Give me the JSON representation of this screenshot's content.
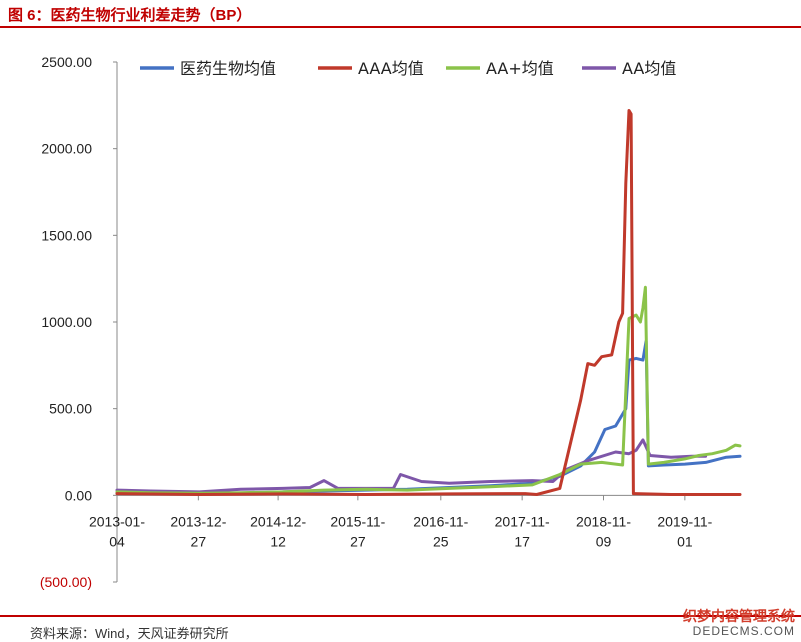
{
  "figure_title": "图 6：医药生物行业利差走势（BP）",
  "source_note": "资料来源：Wind，天风证券研究所",
  "watermark": {
    "line1": "织梦内容管理系统",
    "line2": "DEDECMS.COM"
  },
  "colors": {
    "med": "#4472c4",
    "aaa": "#c0392b",
    "aaplus": "#8bc34a",
    "aa": "#7e57a9"
  },
  "chart_data": {
    "type": "line",
    "title": "",
    "xlabel": "",
    "ylabel": "",
    "ylim": [
      -500,
      2500
    ],
    "y_ticks": [
      -500,
      0,
      500,
      1000,
      1500,
      2000,
      2500
    ],
    "y_tick_labels": [
      "(500.00)",
      "0.00",
      "500.00",
      "1000.00",
      "1500.00",
      "2000.00",
      "2500.00"
    ],
    "x_range": [
      "2013-01-04",
      "2020-06-30"
    ],
    "x_ticks": [
      {
        "date": "2013-01-04",
        "line1": "2013-01-",
        "line2": "04"
      },
      {
        "date": "2013-12-27",
        "line1": "2013-12-",
        "line2": "27"
      },
      {
        "date": "2014-12-12",
        "line1": "2014-12-",
        "line2": "12"
      },
      {
        "date": "2015-11-27",
        "line1": "2015-11-",
        "line2": "27"
      },
      {
        "date": "2016-11-25",
        "line1": "2016-11-",
        "line2": "25"
      },
      {
        "date": "2017-11-17",
        "line1": "2017-11-",
        "line2": "17"
      },
      {
        "date": "2018-11-09",
        "line1": "2018-11-",
        "line2": "09"
      },
      {
        "date": "2019-11-01",
        "line1": "2019-11-",
        "line2": "01"
      }
    ],
    "legend_position": "top",
    "grid": false,
    "series": [
      {
        "key": "med",
        "name": "医药生物均值",
        "points": [
          [
            "2013-01-04",
            15
          ],
          [
            "2013-06-01",
            10
          ],
          [
            "2014-01-01",
            8
          ],
          [
            "2014-07-01",
            12
          ],
          [
            "2015-01-01",
            20
          ],
          [
            "2015-07-01",
            25
          ],
          [
            "2016-01-01",
            30
          ],
          [
            "2016-07-01",
            35
          ],
          [
            "2017-01-01",
            45
          ],
          [
            "2017-07-01",
            55
          ],
          [
            "2018-01-01",
            70
          ],
          [
            "2018-05-01",
            110
          ],
          [
            "2018-08-01",
            170
          ],
          [
            "2018-10-01",
            250
          ],
          [
            "2018-11-15",
            380
          ],
          [
            "2019-01-01",
            400
          ],
          [
            "2019-02-15",
            500
          ],
          [
            "2019-03-01",
            780
          ],
          [
            "2019-04-01",
            790
          ],
          [
            "2019-05-01",
            780
          ],
          [
            "2019-05-15",
            890
          ],
          [
            "2019-05-25",
            170
          ],
          [
            "2019-08-01",
            175
          ],
          [
            "2019-11-01",
            180
          ],
          [
            "2020-02-01",
            190
          ],
          [
            "2020-05-01",
            220
          ],
          [
            "2020-06-30",
            225
          ]
        ]
      },
      {
        "key": "aaa",
        "name": "AAA均值",
        "points": [
          [
            "2013-01-04",
            10
          ],
          [
            "2014-01-01",
            5
          ],
          [
            "2015-01-01",
            8
          ],
          [
            "2016-01-01",
            5
          ],
          [
            "2017-01-01",
            8
          ],
          [
            "2017-12-01",
            10
          ],
          [
            "2018-01-20",
            5
          ],
          [
            "2018-05-01",
            40
          ],
          [
            "2018-08-01",
            550
          ],
          [
            "2018-09-01",
            760
          ],
          [
            "2018-10-01",
            750
          ],
          [
            "2018-11-01",
            800
          ],
          [
            "2018-12-15",
            810
          ],
          [
            "2019-01-15",
            1000
          ],
          [
            "2019-02-01",
            1050
          ],
          [
            "2019-02-15",
            1800
          ],
          [
            "2019-03-01",
            2220
          ],
          [
            "2019-03-10",
            2200
          ],
          [
            "2019-03-20",
            10
          ],
          [
            "2019-09-01",
            5
          ],
          [
            "2020-06-30",
            5
          ]
        ]
      },
      {
        "key": "aaplus",
        "name": "AA+均值",
        "points": [
          [
            "2013-01-04",
            20
          ],
          [
            "2013-06-01",
            15
          ],
          [
            "2014-01-01",
            12
          ],
          [
            "2014-07-01",
            15
          ],
          [
            "2015-01-01",
            20
          ],
          [
            "2015-07-01",
            30
          ],
          [
            "2016-01-01",
            35
          ],
          [
            "2016-07-01",
            30
          ],
          [
            "2017-01-01",
            40
          ],
          [
            "2017-07-01",
            50
          ],
          [
            "2018-01-01",
            60
          ],
          [
            "2018-05-01",
            120
          ],
          [
            "2018-08-01",
            180
          ],
          [
            "2018-11-01",
            190
          ],
          [
            "2019-01-01",
            180
          ],
          [
            "2019-02-01",
            175
          ],
          [
            "2019-03-01",
            1020
          ],
          [
            "2019-04-01",
            1040
          ],
          [
            "2019-04-20",
            1000
          ],
          [
            "2019-05-01",
            1080
          ],
          [
            "2019-05-12",
            1200
          ],
          [
            "2019-05-25",
            180
          ],
          [
            "2019-08-01",
            190
          ],
          [
            "2019-11-01",
            210
          ],
          [
            "2020-01-01",
            230
          ],
          [
            "2020-03-01",
            240
          ],
          [
            "2020-05-01",
            260
          ],
          [
            "2020-06-10",
            290
          ],
          [
            "2020-06-30",
            285
          ]
        ]
      },
      {
        "key": "aa",
        "name": "AA均值",
        "points": [
          [
            "2013-01-04",
            30
          ],
          [
            "2013-06-01",
            25
          ],
          [
            "2014-01-01",
            20
          ],
          [
            "2014-07-01",
            35
          ],
          [
            "2015-01-01",
            40
          ],
          [
            "2015-05-01",
            45
          ],
          [
            "2015-07-01",
            85
          ],
          [
            "2015-09-01",
            40
          ],
          [
            "2016-01-01",
            40
          ],
          [
            "2016-05-01",
            40
          ],
          [
            "2016-06-01",
            120
          ],
          [
            "2016-09-01",
            80
          ],
          [
            "2017-01-01",
            70
          ],
          [
            "2017-07-01",
            80
          ],
          [
            "2018-01-01",
            85
          ],
          [
            "2018-04-01",
            80
          ],
          [
            "2018-06-01",
            150
          ],
          [
            "2018-09-01",
            200
          ],
          [
            "2019-01-01",
            250
          ],
          [
            "2019-03-01",
            240
          ],
          [
            "2019-04-01",
            260
          ],
          [
            "2019-05-01",
            320
          ],
          [
            "2019-06-01",
            230
          ],
          [
            "2019-09-01",
            220
          ],
          [
            "2019-12-01",
            225
          ],
          [
            "2020-01-31",
            225
          ]
        ]
      }
    ]
  }
}
